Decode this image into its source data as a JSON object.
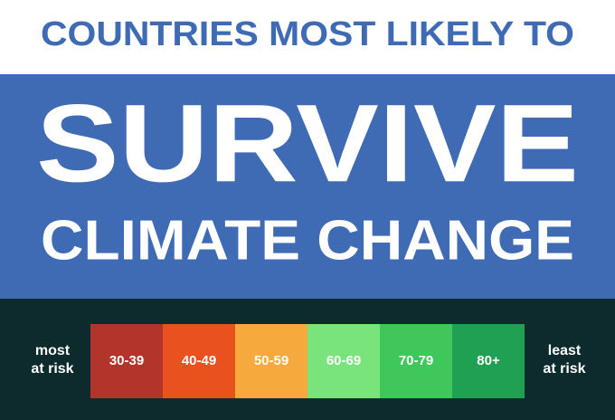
{
  "header": {
    "kicker": "COUNTRIES MOST LIKELY TO",
    "title": "SURVIVE",
    "subtitle": "CLIMATE CHANGE"
  },
  "legend": {
    "left_label": [
      "most",
      "at risk"
    ],
    "right_label": [
      "least",
      "at risk"
    ],
    "segments": [
      {
        "label": "30-39",
        "color": "#b3342b"
      },
      {
        "label": "40-49",
        "color": "#e9521f"
      },
      {
        "label": "50-59",
        "color": "#f6a93d"
      },
      {
        "label": "60-69",
        "color": "#79e37c"
      },
      {
        "label": "70-79",
        "color": "#3fc75b"
      },
      {
        "label": "80+",
        "color": "#20a052"
      }
    ]
  }
}
